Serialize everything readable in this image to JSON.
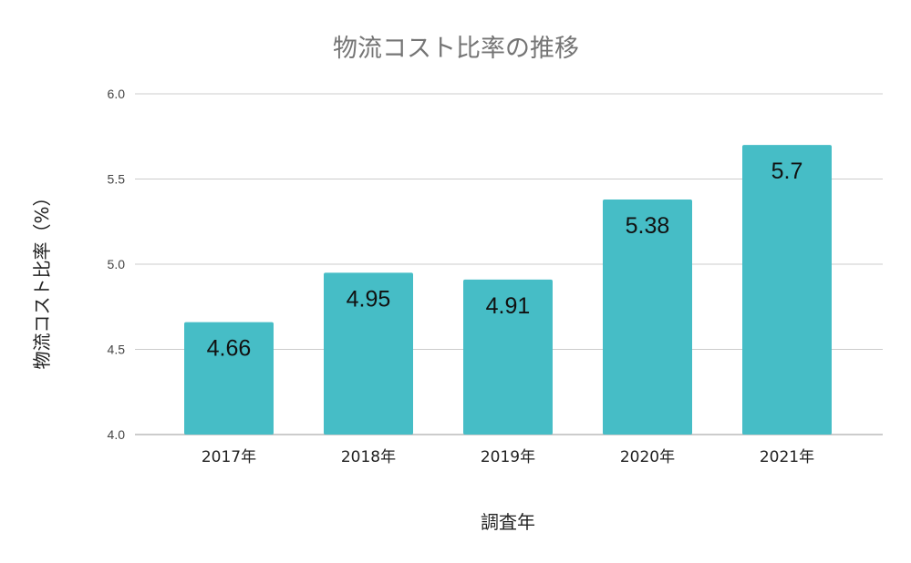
{
  "chart_data": {
    "type": "bar",
    "title": "物流コスト比率の推移",
    "xlabel": "調査年",
    "ylabel": "物流コスト比率（%）",
    "categories": [
      "2017年",
      "2018年",
      "2019年",
      "2020年",
      "2021年"
    ],
    "series": [
      {
        "values": [
          4.66,
          4.95,
          4.91,
          5.38,
          5.7
        ]
      }
    ],
    "data_labels": [
      "4.66",
      "4.95",
      "4.91",
      "5.38",
      "5.7"
    ],
    "ylim": [
      4.0,
      6.0
    ],
    "y_ticks": [
      "4.0",
      "4.5",
      "5.0",
      "5.5",
      "6.0"
    ],
    "grid": true,
    "legend": "none",
    "bar_color": "#46bdc6"
  }
}
